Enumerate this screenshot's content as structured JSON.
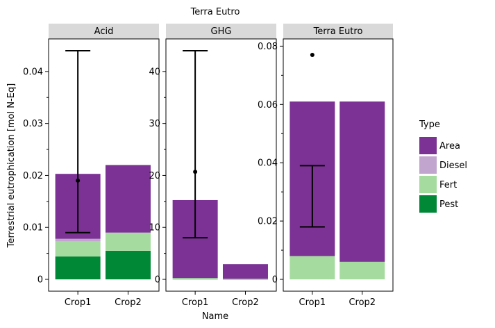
{
  "chart_data": {
    "type": "bar",
    "title": "Terra Eutro",
    "xlabel": "Name",
    "ylabel": "Terrestrial eutrophication [mol N-Eq]",
    "categories": [
      "Crop1",
      "Crop2"
    ],
    "stacked": true,
    "grid": false,
    "legend": {
      "title": "Type",
      "position": "right",
      "entries": [
        "Area",
        "Diesel",
        "Fert",
        "Pest"
      ]
    },
    "colors": {
      "Area": "#7b3294",
      "Diesel": "#c2a5cf",
      "Fert": "#a6dba0",
      "Pest": "#008837",
      "strip": "#d9d9d9"
    },
    "panels": [
      {
        "title": "Acid",
        "ylim": [
          0,
          0.046
        ],
        "yticks": [
          0,
          0.01,
          0.02,
          0.03,
          0.04
        ],
        "ytick_labels": [
          "0",
          "0.01",
          "0.02",
          "0.03",
          "0.04"
        ],
        "series": [
          {
            "name": "Pest",
            "values": [
              0.0044,
              0.0055
            ]
          },
          {
            "name": "Fert",
            "values": [
              0.0029,
              0.0035
            ]
          },
          {
            "name": "Diesel",
            "values": [
              0.0005,
              0.0
            ]
          },
          {
            "name": "Area",
            "values": [
              0.0125,
              0.013
            ]
          }
        ],
        "errorbar": {
          "category": "Crop1",
          "low": 0.009,
          "high": 0.044,
          "point": 0.019
        }
      },
      {
        "title": "GHG",
        "ylim": [
          0,
          46
        ],
        "yticks": [
          0,
          10,
          20,
          30,
          40
        ],
        "ytick_labels": [
          "0",
          "10",
          "20",
          "30",
          "40"
        ],
        "series": [
          {
            "name": "Pest",
            "values": [
              0.05,
              0.02
            ]
          },
          {
            "name": "Fert",
            "values": [
              0.2,
              0.1
            ]
          },
          {
            "name": "Diesel",
            "values": [
              0.0,
              0.0
            ]
          },
          {
            "name": "Area",
            "values": [
              15.0,
              2.8
            ]
          }
        ],
        "errorbar": {
          "category": "Crop1",
          "low": 8,
          "high": 44,
          "point": 20.7
        }
      },
      {
        "title": "Terra Eutro",
        "ylim": [
          0,
          0.082
        ],
        "yticks": [
          0,
          0.02,
          0.04,
          0.06,
          0.08
        ],
        "ytick_labels": [
          "0",
          "0.02",
          "0.04",
          "0.06",
          "0.08"
        ],
        "series": [
          {
            "name": "Pest",
            "values": [
              0.0,
              0.0
            ]
          },
          {
            "name": "Fert",
            "values": [
              0.008,
              0.006
            ]
          },
          {
            "name": "Diesel",
            "values": [
              0.0,
              0.0
            ]
          },
          {
            "name": "Area",
            "values": [
              0.053,
              0.055
            ]
          }
        ],
        "errorbar": {
          "category": "Crop1",
          "low": 0.018,
          "high": 0.039,
          "point": null
        },
        "outlier": {
          "category": "Crop1",
          "value": 0.077
        }
      }
    ]
  }
}
